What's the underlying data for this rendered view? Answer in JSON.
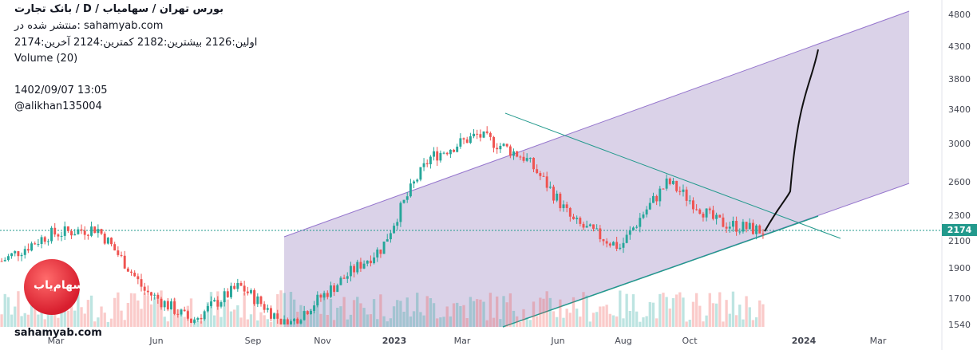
{
  "header": {
    "title": "بانک تجارت /  D  /  بورس تهران / سهامیاب",
    "published": "منتشر شده در: sahamyab.com",
    "ohlc": "اولین:2126  بیشترین:2182  کمترین:2124  آخرین:2174",
    "volume": "Volume (20)",
    "datetime": "1402/09/07 13:05",
    "author": "@alikhan135004"
  },
  "brand": {
    "logo_text": "سهام‌یاب",
    "site": "sahamyab.com"
  },
  "colors": {
    "up": "#26a69a",
    "down": "#ef5350",
    "channel_fill": "#d6cde6",
    "channel_line": "#9575cd",
    "trend": "#22998c"
  },
  "chart_data": {
    "type": "candlestick",
    "last_price_label": "2174",
    "y_ticks": [
      "4800",
      "4300",
      "3800",
      "3400",
      "3000",
      "2600",
      "2300",
      "2100",
      "1900",
      "1700",
      "1540"
    ],
    "x_ticks": [
      "Mar",
      "Jun",
      "Sep",
      "Nov",
      "2023",
      "Mar",
      "Jun",
      "Aug",
      "Oct",
      "2024",
      "Mar"
    ],
    "x_bold": [
      "2023",
      "2024"
    ],
    "ylim": [
      1540,
      4800
    ],
    "close_approx": [
      {
        "date": "2022-02",
        "close": 1950
      },
      {
        "date": "2022-04",
        "close": 2150
      },
      {
        "date": "2022-05",
        "close": 2200
      },
      {
        "date": "2022-07",
        "close": 1750
      },
      {
        "date": "2022-08",
        "close": 1560
      },
      {
        "date": "2022-09",
        "close": 1780
      },
      {
        "date": "2022-10",
        "close": 1530
      },
      {
        "date": "2023-01",
        "close": 1780
      },
      {
        "date": "2023-03",
        "close": 2050
      },
      {
        "date": "2023-04",
        "close": 2850
      },
      {
        "date": "2023-05",
        "close": 3100
      },
      {
        "date": "2023-06",
        "close": 2850
      },
      {
        "date": "2023-07",
        "close": 2250
      },
      {
        "date": "2023-08",
        "close": 2050
      },
      {
        "date": "2023-09",
        "close": 2600
      },
      {
        "date": "2023-10",
        "close": 2250
      },
      {
        "date": "2023-11",
        "close": 2174
      }
    ],
    "projection_target": 4250
  }
}
